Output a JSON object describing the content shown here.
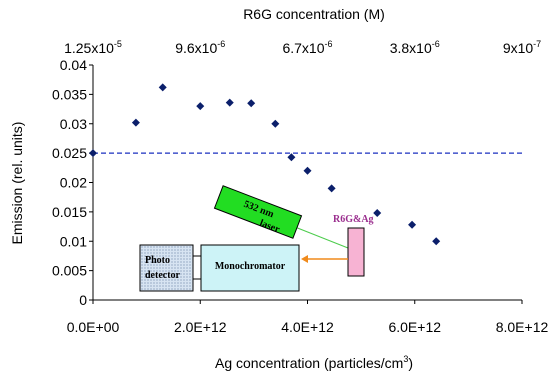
{
  "chart_data": {
    "type": "scatter",
    "title": "",
    "xlabel": "Ag concentration (particles/cm",
    "xlabel_sup": "3",
    "xlabel_end": ")",
    "ylabel": "Emission (rel. units)",
    "top_axis_label": "R6G concentration (M)",
    "top_ticks": [
      {
        "base": "1.25x10",
        "exp": "-5"
      },
      {
        "base": "9.6x10",
        "exp": "-6"
      },
      {
        "base": "6.7x10",
        "exp": "-6"
      },
      {
        "base": "3.8x10",
        "exp": "-6"
      },
      {
        "base": "9x10",
        "exp": "-7"
      }
    ],
    "x_ticks": [
      "0.0E+00",
      "2.0E+12",
      "4.0E+12",
      "6.0E+12",
      "8.0E+12"
    ],
    "y_ticks": [
      "0",
      "0.005",
      "0.01",
      "0.015",
      "0.02",
      "0.025",
      "0.03",
      "0.035",
      "0.04"
    ],
    "xlim": [
      0,
      8000000000000.0
    ],
    "ylim": [
      0,
      0.04
    ],
    "grid": false,
    "marker_color": "#0b1f6b",
    "reference_line": {
      "y": 0.025,
      "style": "dashed",
      "color": "#1a2fbf"
    },
    "points": [
      {
        "x": 0.0,
        "y": 0.025
      },
      {
        "x": 800000000000.0,
        "y": 0.0302
      },
      {
        "x": 1300000000000.0,
        "y": 0.0362
      },
      {
        "x": 2000000000000.0,
        "y": 0.033
      },
      {
        "x": 2550000000000.0,
        "y": 0.0336
      },
      {
        "x": 2950000000000.0,
        "y": 0.0335
      },
      {
        "x": 3400000000000.0,
        "y": 0.03
      },
      {
        "x": 3700000000000.0,
        "y": 0.0243
      },
      {
        "x": 4000000000000.0,
        "y": 0.022
      },
      {
        "x": 4450000000000.0,
        "y": 0.019
      },
      {
        "x": 5300000000000.0,
        "y": 0.0148
      },
      {
        "x": 5950000000000.0,
        "y": 0.0128
      },
      {
        "x": 6400000000000.0,
        "y": 0.01
      }
    ],
    "inset": {
      "laser_line1": "532 nm",
      "laser_line2": "laser",
      "sample_label": "R6G&Ag",
      "detector_line1": "Photo",
      "detector_line2": "detector",
      "monochromator_label": "Monochromator",
      "laser_color": "#22dd22",
      "sample_color": "#f7b3d3",
      "monochromator_color": "#cdf3f7",
      "arrow_color": "#f08a1c",
      "beam_color": "#4ccc4c",
      "sample_label_color": "#9b2f8f"
    }
  }
}
